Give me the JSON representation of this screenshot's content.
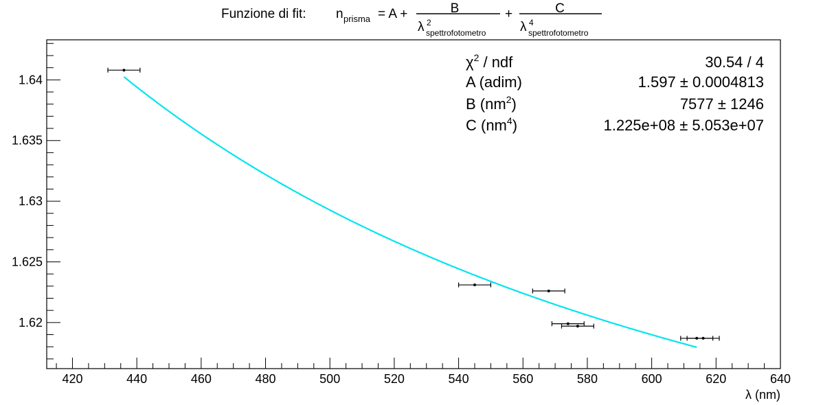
{
  "title": {
    "prefix": "Funzione di fit:",
    "n_symbol": "n",
    "n_subscript": "prisma",
    "equals_a": "= A +",
    "frac1_num": "B",
    "frac1_den_sym": "λ",
    "frac1_den_sup": "2",
    "frac1_den_sub": "spettrofotometro",
    "plus": "+",
    "frac2_num": "C",
    "frac2_den_sym": "λ",
    "frac2_den_sup": "4",
    "frac2_den_sub": "spettrofotometro"
  },
  "stats": {
    "chi_symbol": "χ",
    "chi_sup": "2",
    "chi_rest": " / ndf",
    "chi_value": "30.54 / 4",
    "a_label": "A (adim)",
    "a_value": "1.597 ± 0.0004813",
    "b_label_pre": "B (nm",
    "b_label_sup": "2",
    "b_label_post": ")",
    "b_value": "7577 ±  1246",
    "c_label_pre": "C (nm",
    "c_label_sup": "4",
    "c_label_post": ")",
    "c_value": "1.225e+08 ± 5.053e+07"
  },
  "chart_data": {
    "type": "scatter",
    "xlabel": "λ (nm)",
    "ylabel": "",
    "xlim": [
      412,
      640
    ],
    "ylim": [
      1.6162,
      1.6433
    ],
    "x_major_ticks": [
      420,
      440,
      460,
      480,
      500,
      520,
      540,
      560,
      580,
      600,
      620,
      640
    ],
    "x_tick_labels": [
      "420",
      "440",
      "460",
      "480",
      "500",
      "520",
      "540",
      "560",
      "580",
      "600",
      "620",
      "640"
    ],
    "y_major_ticks": [
      1.62,
      1.625,
      1.63,
      1.635,
      1.64
    ],
    "y_tick_labels": [
      "1.62",
      "1.625",
      "1.63",
      "1.635",
      "1.64"
    ],
    "grid": false,
    "points": [
      {
        "x": 436.0,
        "xerr": 5.0,
        "y": 1.6408,
        "yerr": 5e-05
      },
      {
        "x": 545.0,
        "xerr": 5.0,
        "y": 1.6231,
        "yerr": 5e-05
      },
      {
        "x": 568.0,
        "xerr": 5.0,
        "y": 1.6226,
        "yerr": 5e-05
      },
      {
        "x": 574.0,
        "xerr": 5.0,
        "y": 1.6199,
        "yerr": 5e-05
      },
      {
        "x": 577.0,
        "xerr": 5.0,
        "y": 1.6197,
        "yerr": 5e-05
      },
      {
        "x": 614.0,
        "xerr": 5.0,
        "y": 1.6187,
        "yerr": 5e-05
      },
      {
        "x": 616.0,
        "xerr": 5.0,
        "y": 1.6187,
        "yerr": 5e-05
      }
    ],
    "fit": {
      "function": "A + B/x^2 + C/x^4",
      "A": 1.597,
      "B": 7577,
      "C": 122500000,
      "x_range": [
        436,
        614
      ],
      "color": "#00e5ee"
    },
    "marker_color": "#000000"
  }
}
